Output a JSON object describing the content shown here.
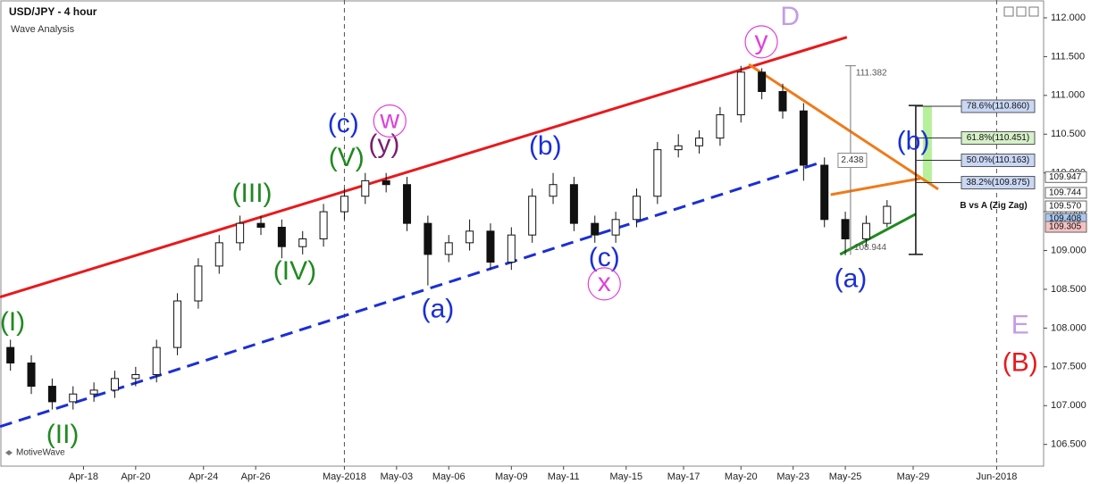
{
  "chart_data": {
    "type": "candlestick",
    "title": "USD/JPY - 4 hour",
    "subtitle": "Wave Analysis",
    "watermark": "MotiveWave",
    "xlim": [
      0,
      200
    ],
    "ylim": [
      106.22,
      112.23
    ],
    "xticks": [
      {
        "value": 16,
        "label": "Apr-18"
      },
      {
        "value": 26,
        "label": "Apr-20"
      },
      {
        "value": 39,
        "label": "Apr-24"
      },
      {
        "value": 49,
        "label": "Apr-26"
      },
      {
        "value": 66,
        "label": "May-2018"
      },
      {
        "value": 76,
        "label": "May-03"
      },
      {
        "value": 86,
        "label": "May-06"
      },
      {
        "value": 98,
        "label": "May-09"
      },
      {
        "value": 108,
        "label": "May-11"
      },
      {
        "value": 120,
        "label": "May-15"
      },
      {
        "value": 131,
        "label": "May-17"
      },
      {
        "value": 142,
        "label": "May-20"
      },
      {
        "value": 152,
        "label": "May-23"
      },
      {
        "value": 162,
        "label": "May-25"
      },
      {
        "value": 175,
        "label": "May-29"
      },
      {
        "value": 191,
        "label": "Jun-2018"
      }
    ],
    "separators": [
      66,
      191
    ],
    "yticks": [
      {
        "value": 106.5,
        "label": "106.500"
      },
      {
        "value": 107,
        "label": "107.000"
      },
      {
        "value": 107.5,
        "label": "107.500"
      },
      {
        "value": 108,
        "label": "108.000"
      },
      {
        "value": 108.5,
        "label": "108.500"
      },
      {
        "value": 109,
        "label": "109.000"
      },
      {
        "value": 109.5,
        "label": "109.500"
      },
      {
        "value": 110,
        "label": "110.000"
      },
      {
        "value": 110.5,
        "label": "110.500"
      },
      {
        "value": 111,
        "label": "111.000"
      },
      {
        "value": 111.5,
        "label": "111.500"
      },
      {
        "value": 112,
        "label": "112.000"
      }
    ],
    "x": [
      2,
      6,
      10,
      14,
      18,
      22,
      26,
      30,
      34,
      38,
      42,
      46,
      50,
      54,
      58,
      62,
      66,
      70,
      74,
      78,
      82,
      86,
      90,
      94,
      98,
      102,
      106,
      110,
      114,
      118,
      122,
      126,
      130,
      134,
      138,
      142,
      146,
      150,
      154,
      158,
      162,
      166,
      170
    ],
    "open": [
      107.75,
      107.55,
      107.25,
      107.05,
      107.15,
      107.2,
      107.35,
      107.4,
      107.75,
      108.35,
      108.8,
      109.1,
      109.35,
      109.3,
      109.05,
      109.15,
      109.5,
      109.7,
      109.9,
      109.85,
      109.35,
      108.95,
      109.1,
      109.25,
      108.85,
      109.2,
      109.7,
      109.85,
      109.35,
      109.2,
      109.4,
      109.7,
      110.3,
      110.35,
      110.45,
      110.75,
      111.3,
      111.05,
      110.8,
      110.1,
      109.4,
      109.15,
      109.35
    ],
    "high": [
      107.85,
      107.65,
      107.35,
      107.25,
      107.3,
      107.45,
      107.5,
      107.85,
      108.45,
      108.9,
      109.2,
      109.45,
      109.45,
      109.4,
      109.25,
      109.6,
      109.8,
      110.0,
      110.0,
      109.95,
      109.45,
      109.2,
      109.4,
      109.35,
      109.3,
      109.8,
      110.0,
      109.95,
      109.45,
      109.5,
      109.8,
      110.4,
      110.5,
      110.55,
      110.85,
      111.38,
      111.35,
      111.15,
      110.9,
      110.2,
      109.5,
      109.45,
      109.65
    ],
    "low": [
      107.45,
      107.15,
      106.95,
      106.95,
      107.05,
      107.1,
      107.25,
      107.3,
      107.65,
      108.25,
      108.7,
      109.0,
      109.2,
      108.9,
      108.95,
      109.05,
      109.4,
      109.6,
      109.75,
      109.25,
      108.55,
      108.85,
      109.0,
      108.75,
      108.75,
      109.1,
      109.6,
      109.25,
      109.1,
      109.1,
      109.3,
      109.6,
      110.2,
      110.25,
      110.35,
      110.65,
      110.95,
      110.7,
      109.9,
      109.3,
      108.94,
      109.05,
      109.3
    ],
    "close": [
      107.55,
      107.25,
      107.05,
      107.15,
      107.2,
      107.35,
      107.4,
      107.75,
      108.35,
      108.8,
      109.1,
      109.35,
      109.3,
      109.05,
      109.15,
      109.5,
      109.7,
      109.9,
      109.85,
      109.35,
      108.95,
      109.1,
      109.25,
      108.85,
      109.2,
      109.7,
      109.85,
      109.35,
      109.2,
      109.4,
      109.7,
      110.3,
      110.35,
      110.45,
      110.75,
      111.3,
      111.05,
      110.8,
      110.1,
      109.4,
      109.15,
      109.35,
      109.57
    ],
    "trendlines": [
      {
        "color": "#e8191c",
        "dashed": false,
        "points": [
          [
            0,
            108.4
          ],
          [
            162.3,
            111.75
          ]
        ]
      },
      {
        "color": "#1a2fd6",
        "dashed": true,
        "points": [
          [
            0,
            106.73
          ],
          [
            157.5,
            110.14
          ]
        ]
      },
      {
        "color": "#f07a18",
        "dashed": false,
        "points": [
          [
            143.5,
            111.4
          ],
          [
            179.8,
            109.79
          ]
        ]
      },
      {
        "color": "#f07a18",
        "dashed": false,
        "points": [
          [
            159.2,
            109.72
          ],
          [
            176.4,
            109.93
          ]
        ]
      },
      {
        "color": "#1f8a1f",
        "dashed": false,
        "points": [
          [
            161,
            108.95
          ],
          [
            175.5,
            109.47
          ]
        ]
      }
    ],
    "annotations": [
      {
        "text": "(I)",
        "x": 2.4,
        "y": 108.06,
        "color": "#1f8a1f"
      },
      {
        "text": "(II)",
        "x": 12,
        "y": 106.61,
        "color": "#1f8a1f"
      },
      {
        "text": "(III)",
        "x": 48.3,
        "y": 109.72,
        "color": "#1f8a1f"
      },
      {
        "text": "(IV)",
        "x": 56.5,
        "y": 108.72,
        "color": "#1f8a1f"
      },
      {
        "text": "(V)",
        "x": 66.4,
        "y": 110.18,
        "color": "#1f8a1f"
      },
      {
        "text": "(c)",
        "x": 65.8,
        "y": 110.62,
        "color": "#1a2fd6"
      },
      {
        "text": "(y)",
        "x": 73.6,
        "y": 110.35,
        "color": "#7a1f6e"
      },
      {
        "text": "w",
        "x": 74.7,
        "y": 110.67,
        "color": "#e040d8",
        "circle": true
      },
      {
        "text": "(a)",
        "x": 83.9,
        "y": 108.23,
        "color": "#1a2fd6"
      },
      {
        "text": "(b)",
        "x": 104.5,
        "y": 110.33,
        "color": "#1a2fd6"
      },
      {
        "text": "(c)",
        "x": 115.8,
        "y": 108.89,
        "color": "#1a2fd6"
      },
      {
        "text": "x",
        "x": 115.8,
        "y": 108.57,
        "color": "#e040d8",
        "circle": true
      },
      {
        "text": "y",
        "x": 145.9,
        "y": 111.69,
        "color": "#e040d8",
        "circle": true
      },
      {
        "text": "D",
        "x": 151.4,
        "y": 112.0,
        "color": "#c49be6"
      },
      {
        "text": "(b)",
        "x": 175,
        "y": 110.39,
        "color": "#1a2fd6"
      },
      {
        "text": "(a)",
        "x": 163,
        "y": 108.62,
        "color": "#1a2fd6"
      },
      {
        "text": "E",
        "x": 195.5,
        "y": 108.02,
        "color": "#c49be6"
      },
      {
        "text": "(B)",
        "x": 195.5,
        "y": 107.54,
        "color": "#e8191c"
      }
    ],
    "measure": {
      "x": 163,
      "top": 111.382,
      "bottom": 108.944,
      "label": 2.438
    },
    "fib_title": "B vs A (Zig Zag)",
    "fib_x": 175.5,
    "fibs": [
      {
        "label": "78.6%(110.860)",
        "value": 110.86,
        "color": "#c9d7f5"
      },
      {
        "label": "61.8%(110.451)",
        "value": 110.451,
        "color": "#d6f0c8"
      },
      {
        "label": "50.0%(110.163)",
        "value": 110.163,
        "color": "#c9d7f5"
      },
      {
        "label": "38.2%(109.875)",
        "value": 109.875,
        "color": "#c9d7f5"
      }
    ],
    "fib_range": [
      110.87,
      108.95
    ],
    "target_color": "#b6f09a",
    "price_tags": [
      {
        "value": 109.947,
        "label": "109.947",
        "color": "#ffffff"
      },
      {
        "value": 109.744,
        "label": "109.744",
        "color": "#ffffff"
      },
      {
        "value": 109.57,
        "label": "109.570",
        "color": "#ffffff"
      },
      {
        "value": 109.408,
        "label": "109.408",
        "color": "#a9c8f0"
      },
      {
        "value": 109.305,
        "label": "109.305",
        "color": "#f4c2c2"
      }
    ]
  }
}
